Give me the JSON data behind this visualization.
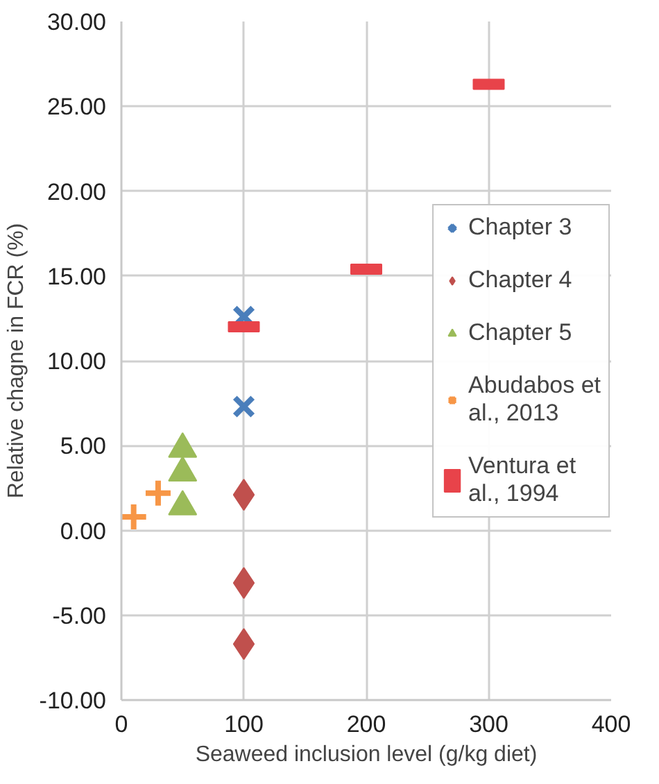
{
  "chart_data": {
    "type": "scatter",
    "xlabel": "Seaweed inclusion level (g/kg diet)",
    "ylabel": "Relative chagne in FCR (%)",
    "xlim": [
      0,
      400
    ],
    "xticks": [
      0,
      100,
      200,
      300,
      400
    ],
    "ylim": [
      -10,
      30
    ],
    "yticks": [
      {
        "value": -10,
        "label": "-10.00"
      },
      {
        "value": -5,
        "label": "-5.00"
      },
      {
        "value": 0,
        "label": "0.00"
      },
      {
        "value": 5,
        "label": "5.00"
      },
      {
        "value": 10,
        "label": "10.00"
      },
      {
        "value": 15,
        "label": "15.00"
      },
      {
        "value": 20,
        "label": "20.00"
      },
      {
        "value": 25,
        "label": "25.00"
      },
      {
        "value": 30,
        "label": "30.00"
      }
    ],
    "grid": true,
    "legend": "right",
    "series": [
      {
        "name": "Chapter 3",
        "color": "#4a7ebb",
        "marker": "cross",
        "x": [
          100,
          100
        ],
        "values": [
          12.6,
          7.3
        ]
      },
      {
        "name": "Chapter 4",
        "color": "#c0504d",
        "marker": "diamond",
        "x": [
          100,
          100,
          100
        ],
        "values": [
          2.1,
          -3.1,
          -6.7
        ]
      },
      {
        "name": "Chapter 5",
        "color": "#9bbb59",
        "marker": "triangle",
        "x": [
          50,
          50,
          50
        ],
        "values": [
          4.8,
          3.4,
          1.4
        ]
      },
      {
        "name": "Abudabos et al., 2013",
        "color": "#f79646",
        "marker": "plus",
        "x": [
          10,
          30
        ],
        "values": [
          0.8,
          2.2
        ]
      },
      {
        "name": "Ventura et al., 1994",
        "color": "#e8434a",
        "marker": "square",
        "x": [
          100,
          200,
          300
        ],
        "values": [
          12.0,
          15.4,
          26.3
        ]
      }
    ]
  }
}
